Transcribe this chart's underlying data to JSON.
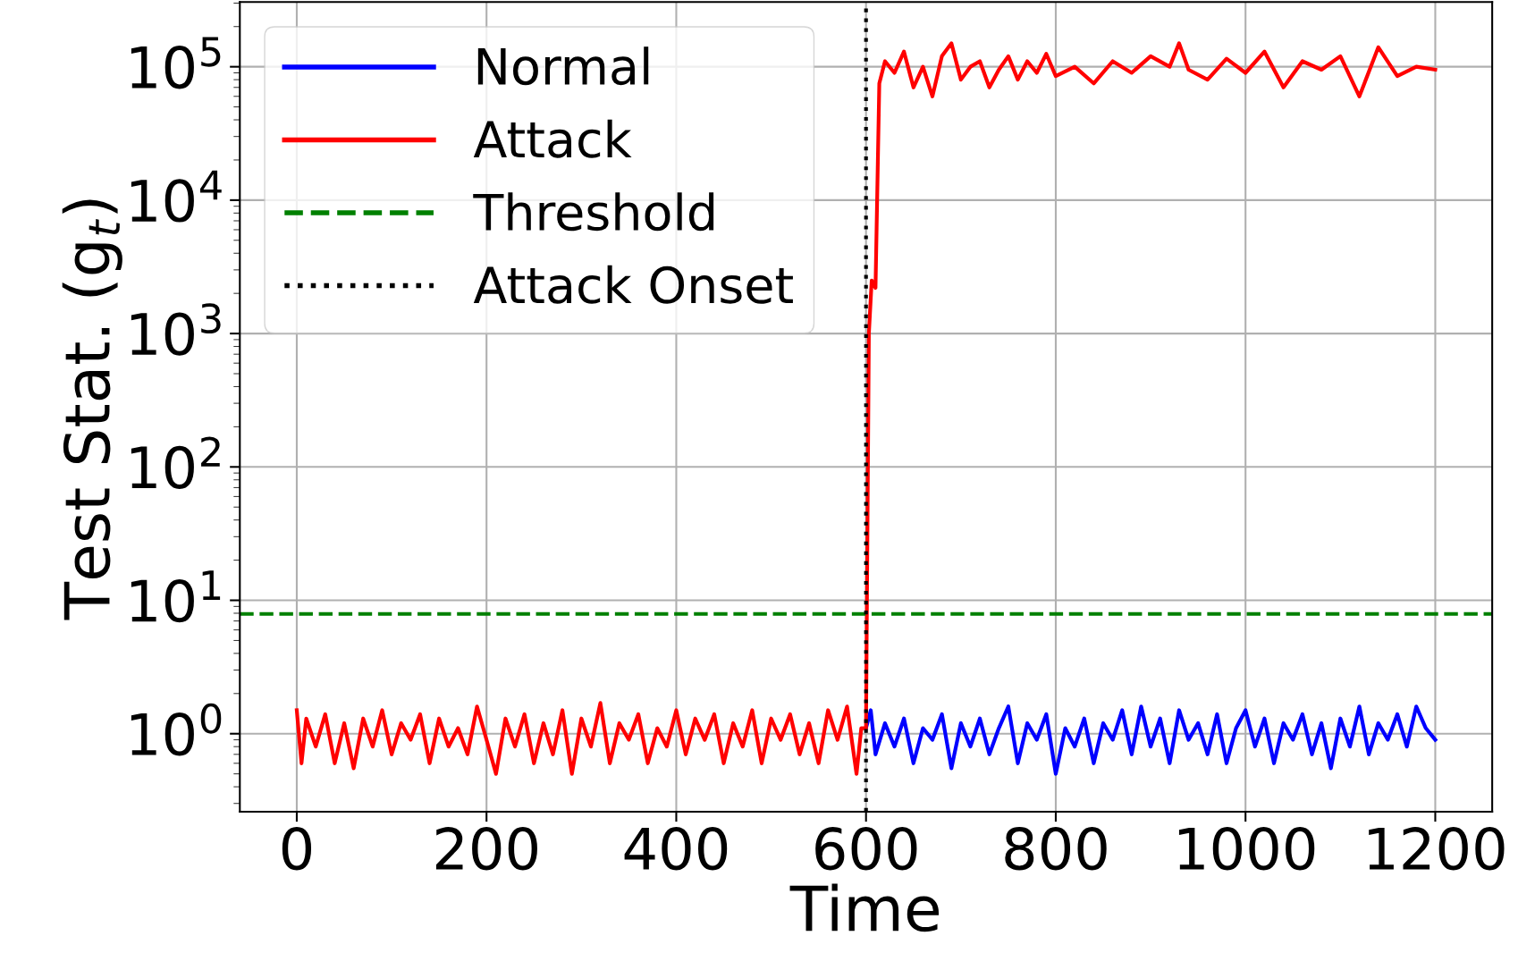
{
  "chart_data": {
    "type": "line",
    "xlabel": "Time",
    "ylabel": "Test Stat. (g$_{t}$)",
    "log": "y",
    "xlim": [
      -60,
      1260
    ],
    "xticks": [
      0,
      200,
      400,
      600,
      800,
      1000,
      1200
    ],
    "ylim": [
      0.26,
      306000
    ],
    "yticks": [
      {
        "value": 1,
        "label": "10$^{0}$"
      },
      {
        "value": 10,
        "label": "10$^{1}$"
      },
      {
        "value": 100,
        "label": "10$^{2}$"
      },
      {
        "value": 1000,
        "label": "10$^{3}$"
      },
      {
        "value": 10000,
        "label": "10$^{4}$"
      },
      {
        "value": 100000,
        "label": "10$^{5}$"
      }
    ],
    "grid": true,
    "legend": "top left",
    "marker": "none",
    "series": [
      {
        "name": "Normal",
        "color": "#0000ff",
        "x": [
          600,
          605,
          610,
          620,
          630,
          640,
          650,
          660,
          670,
          680,
          690,
          700,
          710,
          720,
          730,
          740,
          750,
          760,
          770,
          780,
          790,
          800,
          810,
          820,
          830,
          840,
          850,
          860,
          870,
          880,
          890,
          900,
          910,
          920,
          930,
          940,
          950,
          960,
          970,
          980,
          990,
          1000,
          1010,
          1020,
          1030,
          1040,
          1050,
          1060,
          1070,
          1080,
          1090,
          1100,
          1110,
          1120,
          1130,
          1140,
          1150,
          1160,
          1170,
          1180,
          1190,
          1200
        ],
        "values": [
          1.1,
          1.5,
          0.7,
          1.2,
          0.8,
          1.3,
          0.6,
          1.1,
          0.9,
          1.4,
          0.55,
          1.2,
          0.8,
          1.3,
          0.7,
          1.1,
          1.6,
          0.6,
          1.2,
          0.9,
          1.4,
          0.5,
          1.1,
          0.8,
          1.3,
          0.6,
          1.2,
          0.9,
          1.5,
          0.7,
          1.6,
          0.8,
          1.3,
          0.6,
          1.5,
          0.9,
          1.2,
          0.7,
          1.4,
          0.6,
          1.1,
          1.5,
          0.8,
          1.3,
          0.6,
          1.2,
          0.9,
          1.4,
          0.7,
          1.2,
          0.55,
          1.3,
          0.8,
          1.6,
          0.7,
          1.2,
          0.9,
          1.4,
          0.8,
          1.6,
          1.1,
          0.9
        ]
      },
      {
        "name": "Attack",
        "color": "#ff0000",
        "x": [
          0,
          5,
          10,
          20,
          30,
          40,
          50,
          60,
          70,
          80,
          90,
          100,
          110,
          120,
          130,
          140,
          150,
          160,
          170,
          180,
          190,
          200,
          210,
          220,
          230,
          240,
          250,
          260,
          270,
          280,
          290,
          300,
          310,
          320,
          330,
          340,
          350,
          360,
          370,
          380,
          390,
          400,
          410,
          420,
          430,
          440,
          450,
          460,
          470,
          480,
          490,
          500,
          510,
          520,
          530,
          540,
          550,
          560,
          570,
          580,
          590,
          595,
          600,
          603,
          606,
          610,
          614,
          620,
          630,
          640,
          650,
          660,
          670,
          680,
          690,
          700,
          710,
          720,
          730,
          740,
          750,
          760,
          770,
          780,
          790,
          800,
          820,
          840,
          860,
          880,
          900,
          920,
          930,
          940,
          960,
          980,
          1000,
          1020,
          1040,
          1060,
          1080,
          1100,
          1120,
          1140,
          1160,
          1180,
          1200
        ],
        "values": [
          1.5,
          0.6,
          1.3,
          0.8,
          1.4,
          0.6,
          1.2,
          0.55,
          1.3,
          0.8,
          1.5,
          0.7,
          1.2,
          0.9,
          1.4,
          0.6,
          1.3,
          0.8,
          1.1,
          0.7,
          1.6,
          0.9,
          0.5,
          1.3,
          0.8,
          1.4,
          0.6,
          1.2,
          0.7,
          1.5,
          0.5,
          1.3,
          0.8,
          1.7,
          0.6,
          1.2,
          0.9,
          1.4,
          0.6,
          1.1,
          0.8,
          1.5,
          0.7,
          1.3,
          0.9,
          1.4,
          0.6,
          1.2,
          0.8,
          1.5,
          0.6,
          1.3,
          0.9,
          1.4,
          0.7,
          1.2,
          0.6,
          1.5,
          0.9,
          1.6,
          0.5,
          1.1,
          1.1,
          1000,
          2500,
          2200,
          75000,
          110000,
          90000,
          130000,
          70000,
          100000,
          60000,
          120000,
          150000,
          80000,
          100000,
          110000,
          70000,
          95000,
          120000,
          80000,
          110000,
          90000,
          125000,
          85000,
          100000,
          75000,
          110000,
          90000,
          120000,
          100000,
          150000,
          95000,
          80000,
          115000,
          90000,
          130000,
          70000,
          110000,
          95000,
          120000,
          60000,
          140000,
          85000,
          100000,
          95000
        ]
      }
    ],
    "ref_lines": [
      {
        "axis": "y",
        "value": 7.9,
        "label": "Threshold",
        "color": "#008000",
        "line_style": "dashed"
      },
      {
        "axis": "x",
        "value": 600,
        "label": "Attack Onset",
        "color": "#000000",
        "line_style": "dotted"
      }
    ]
  }
}
